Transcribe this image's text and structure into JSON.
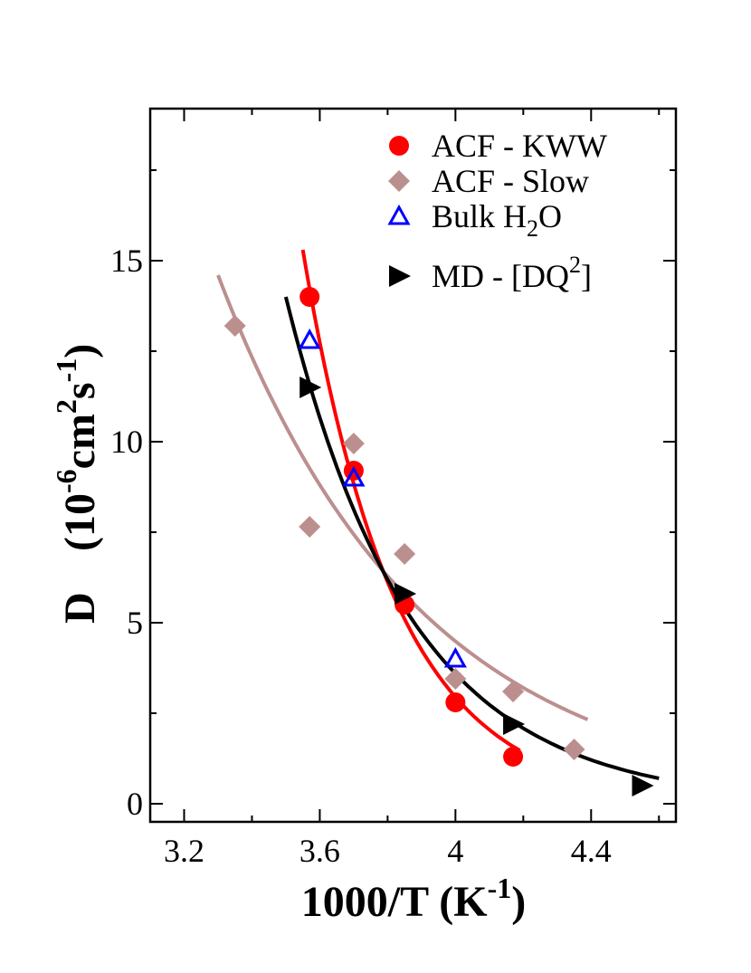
{
  "chart_data": {
    "type": "scatter",
    "xlabel": "1000/T (K-1)",
    "ylabel": "D (10-6cm2s-1)",
    "xlim": [
      3.1,
      4.65
    ],
    "ylim": [
      -0.5,
      19.2
    ],
    "xticks": [
      "3.2",
      "3.6",
      "4",
      "4.4"
    ],
    "yticks": [
      "0",
      "5",
      "10",
      "15"
    ],
    "grid": false,
    "legend_position": "top-right",
    "series": [
      {
        "name": "ACF - KWW",
        "marker": "circle",
        "color": "#ff0000",
        "points": [
          [
            3.57,
            14.0
          ],
          [
            3.7,
            9.2
          ],
          [
            3.85,
            5.5
          ],
          [
            4.0,
            2.8
          ],
          [
            4.17,
            1.3
          ]
        ]
      },
      {
        "name": "ACF - Slow",
        "marker": "diamond",
        "color": "#bc8f8f",
        "points": [
          [
            3.35,
            13.2
          ],
          [
            3.57,
            7.65
          ],
          [
            3.7,
            9.95
          ],
          [
            3.85,
            6.9
          ],
          [
            4.0,
            3.45
          ],
          [
            4.17,
            3.1
          ],
          [
            4.35,
            1.5
          ]
        ]
      },
      {
        "name": "Bulk H2O",
        "marker": "triangle-up-open",
        "color": "#0000ff",
        "points": [
          [
            3.57,
            12.8
          ],
          [
            3.7,
            9.0
          ],
          [
            4.0,
            4.0
          ]
        ]
      },
      {
        "name": "MD - [DQ2]",
        "marker": "triangle-right",
        "color": "#000000",
        "points": [
          [
            3.57,
            11.5
          ],
          [
            3.85,
            5.8
          ],
          [
            4.17,
            2.2
          ],
          [
            4.55,
            0.5
          ]
        ]
      }
    ],
    "fit_lines": [
      {
        "of": "ACF - KWW",
        "color": "#ff0000",
        "x_range": [
          3.55,
          4.19
        ],
        "params": {
          "a": 15.3,
          "k": 3.66,
          "x0": 3.55
        }
      },
      {
        "of": "ACF - Slow",
        "color": "#bc8f8f",
        "x_range": [
          3.3,
          4.39
        ],
        "params": {
          "a": 14.6,
          "k": 1.685,
          "x0": 3.3
        }
      },
      {
        "of": "MD - [DQ2]",
        "color": "#000000",
        "x_range": [
          3.5,
          4.6
        ],
        "params": {
          "a": 14.0,
          "k": 2.72,
          "x0": 3.5
        }
      }
    ]
  },
  "legend": {
    "labels": [
      "ACF - KWW",
      "ACF - Slow",
      "Bulk H",
      "MD - [DQ"
    ],
    "subscripts": [
      "",
      "",
      "2",
      ""
    ],
    "suffixes": [
      "",
      "",
      "O",
      "]"
    ],
    "superscripts": [
      "",
      "",
      "",
      "2"
    ]
  },
  "axes": {
    "x_title_main": "1000/T (K",
    "x_title_sup": "-1",
    "x_title_end": ")",
    "y_title_d": "D",
    "y_title_open": "(10",
    "y_title_sup1": "-6",
    "y_title_cm": "cm",
    "y_title_sup2": "2",
    "y_title_s": "s",
    "y_title_sup3": "-1",
    "y_title_close": ")"
  }
}
